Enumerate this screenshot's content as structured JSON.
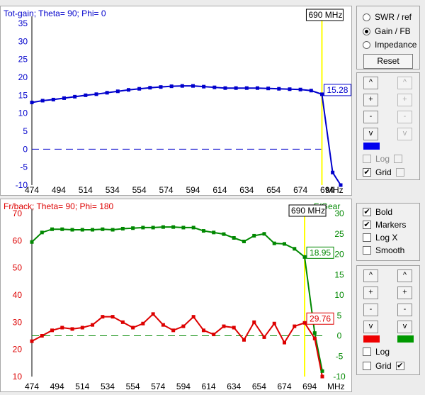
{
  "top_chart": {
    "title": "Tot-gain; Theta= 90; Phi= 0",
    "marker_label": "690 MHz",
    "readout": "15.28",
    "x_unit": "MHz",
    "x_ticks": [
      "474",
      "494",
      "514",
      "534",
      "554",
      "574",
      "594",
      "614",
      "634",
      "654",
      "674",
      "694"
    ],
    "y_ticks": [
      "35",
      "30",
      "25",
      "20",
      "15",
      "10",
      "5",
      "0",
      "-5",
      "-10"
    ],
    "colors": {
      "line": "#0000cc",
      "marker": "#ffff00",
      "zero_line": "#0000cc"
    }
  },
  "bottom_chart": {
    "title": "Fr/back; Theta= 90; Phi= 180",
    "right_title": "F/Gear",
    "marker_label": "690 MHz",
    "readout_green": "18.95",
    "readout_red": "29.76",
    "x_unit": "MHz",
    "x_ticks": [
      "474",
      "494",
      "514",
      "534",
      "554",
      "574",
      "594",
      "614",
      "634",
      "654",
      "674",
      "694"
    ],
    "y_left_ticks": [
      "70",
      "60",
      "50",
      "40",
      "30",
      "20",
      "10"
    ],
    "y_right_ticks": [
      "30",
      "25",
      "20",
      "15",
      "10",
      "5",
      "0",
      "-5",
      "-10"
    ],
    "colors": {
      "red": "#dd0000",
      "green": "#008800",
      "marker": "#ffff00"
    }
  },
  "chart_data": [
    {
      "type": "line",
      "title": "Tot-gain; Theta= 90; Phi= 0",
      "xlabel": "MHz",
      "ylim": [
        -10,
        35
      ],
      "xlim": [
        474,
        704
      ],
      "series": [
        {
          "x": [
            474,
            482,
            490,
            498,
            506,
            514,
            522,
            530,
            538,
            546,
            554,
            562,
            570,
            578,
            586,
            594,
            602,
            610,
            618,
            626,
            634,
            642,
            650,
            658,
            666,
            674,
            682,
            690,
            698,
            704
          ],
          "values": [
            13,
            13.5,
            13.8,
            14.2,
            14.6,
            15,
            15.3,
            15.7,
            16.1,
            16.5,
            16.8,
            17.1,
            17.3,
            17.5,
            17.6,
            17.6,
            17.4,
            17.2,
            17,
            17,
            17,
            17,
            16.9,
            16.8,
            16.7,
            16.6,
            16.3,
            15.28,
            -6.5,
            -10
          ]
        }
      ]
    },
    {
      "type": "line",
      "title": "Fr/back; Theta= 90; Phi= 180",
      "xlabel": "MHz",
      "ylim_left": [
        10,
        70
      ],
      "ylim_right": [
        -10,
        30
      ],
      "xlim": [
        474,
        704
      ],
      "series": [
        {
          "x": [
            474,
            482,
            490,
            498,
            506,
            514,
            522,
            530,
            538,
            546,
            554,
            562,
            570,
            578,
            586,
            594,
            602,
            610,
            618,
            626,
            634,
            642,
            650,
            658,
            666,
            674,
            682,
            690,
            698,
            704
          ],
          "values": [
            23,
            25,
            27,
            28,
            27.5,
            28,
            29,
            32,
            32,
            30,
            28,
            29.5,
            33,
            29,
            27,
            28.5,
            32,
            27,
            25.5,
            28.5,
            28,
            23.5,
            30,
            24.5,
            29.5,
            22.5,
            28.5,
            29.76,
            24,
            10
          ]
        },
        {
          "x": [
            474,
            482,
            490,
            498,
            506,
            514,
            522,
            530,
            538,
            546,
            554,
            562,
            570,
            578,
            586,
            594,
            602,
            610,
            618,
            626,
            634,
            642,
            650,
            658,
            666,
            674,
            682,
            690,
            698,
            704
          ],
          "values": [
            59.5,
            63,
            64.2,
            64.2,
            64,
            64,
            64,
            64.2,
            64,
            64.4,
            64.6,
            64.8,
            64.8,
            65,
            65,
            64.8,
            64.8,
            63.6,
            63,
            62.4,
            61,
            59.7,
            61.8,
            62.5,
            59,
            58.8,
            57,
            54,
            26,
            12
          ]
        }
      ]
    }
  ],
  "panel_mode": {
    "options": [
      "SWR / ref",
      "Gain / FB",
      "Impedance"
    ],
    "selected": 1,
    "reset_label": "Reset"
  },
  "panel_top_scale": {
    "buttons": [
      "^",
      "+",
      "-",
      "v"
    ],
    "log_label": "Log",
    "grid_label": "Grid",
    "left_color": "#0000ee"
  },
  "panel_options": {
    "bold_label": "Bold",
    "markers_label": "Markers",
    "logx_label": "Log X",
    "smooth_label": "Smooth"
  },
  "panel_bottom_scale": {
    "buttons": [
      "^",
      "+",
      "-",
      "v"
    ],
    "log_label": "Log",
    "grid_label": "Grid",
    "left_color": "#ee0000",
    "right_color": "#009900"
  }
}
